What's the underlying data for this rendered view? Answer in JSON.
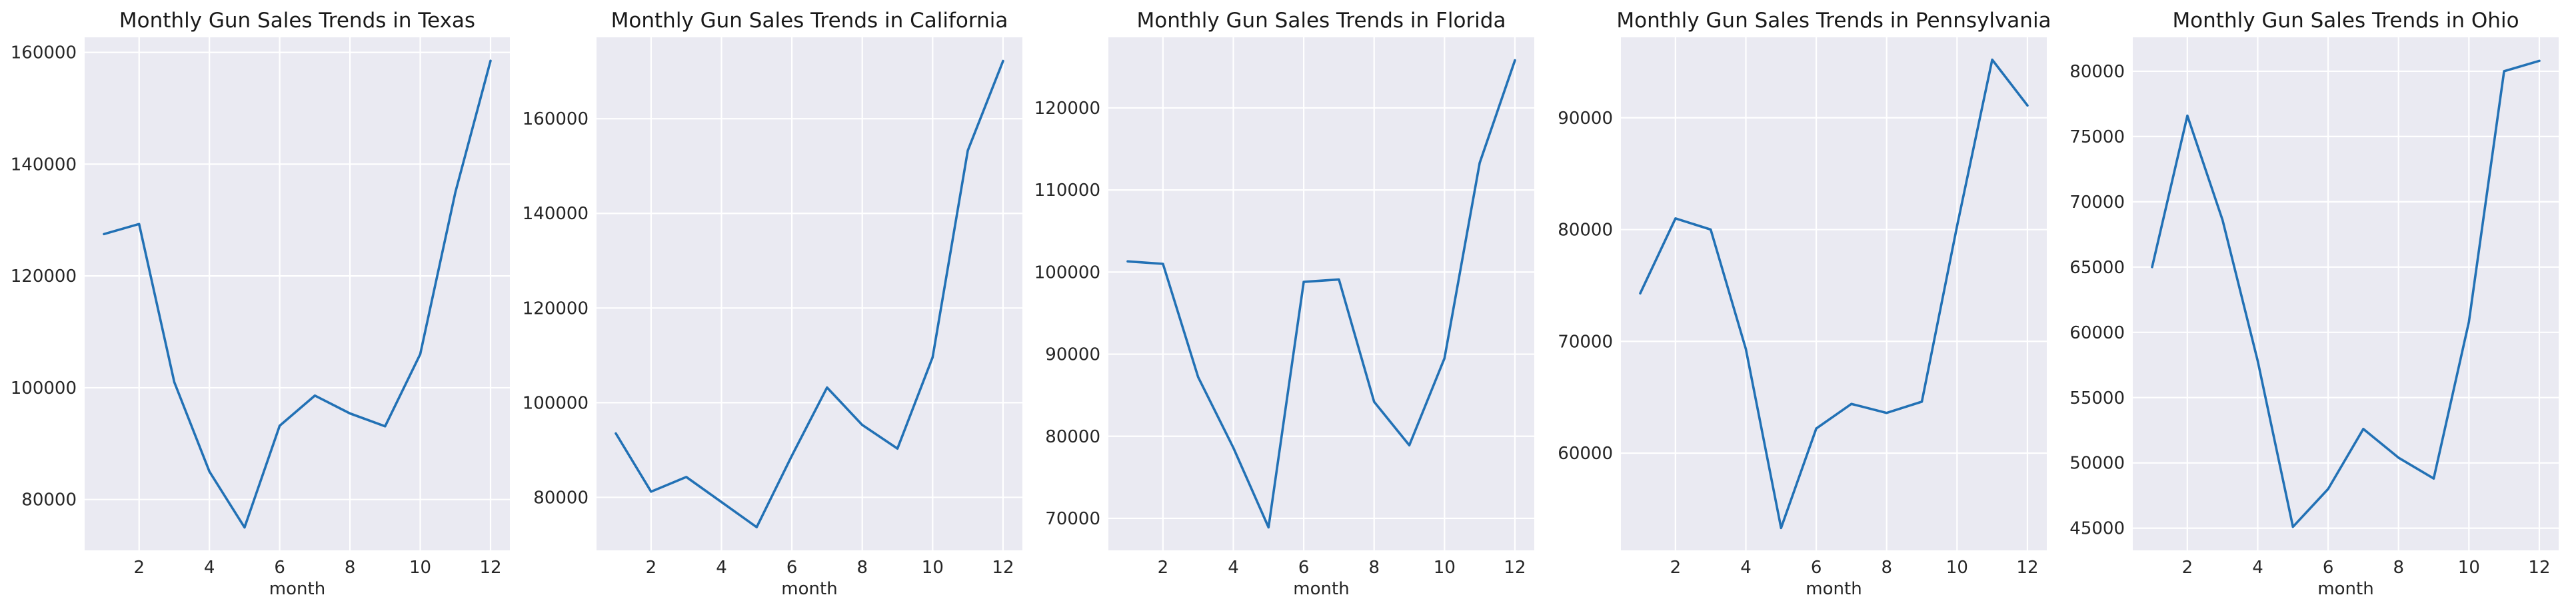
{
  "chart_data": [
    {
      "type": "line",
      "title": "Monthly Gun Sales Trends in Texas",
      "xlabel": "month",
      "ylabel": "",
      "x": [
        1,
        2,
        3,
        4,
        5,
        6,
        7,
        8,
        9,
        10,
        11,
        12
      ],
      "series": [
        {
          "values": [
            127500,
            129300,
            101000,
            85000,
            75000,
            93200,
            98600,
            95400,
            93100,
            106000,
            135000,
            158500
          ]
        }
      ],
      "xlim": [
        0.45,
        12.55
      ],
      "ylim": [
        70900,
        162700
      ],
      "xticks": [
        2,
        4,
        6,
        8,
        10,
        12
      ],
      "yticks": [
        80000,
        100000,
        120000,
        140000,
        160000
      ],
      "grid": true,
      "color": "#2271b5"
    },
    {
      "type": "line",
      "title": "Monthly Gun Sales Trends in California",
      "xlabel": "month",
      "ylabel": "",
      "x": [
        1,
        2,
        3,
        4,
        5,
        6,
        7,
        8,
        9,
        10,
        11,
        12
      ],
      "series": [
        {
          "values": [
            93500,
            81200,
            84300,
            79000,
            73700,
            88800,
            103200,
            95300,
            90300,
            109600,
            153300,
            172200
          ]
        }
      ],
      "xlim": [
        0.45,
        12.55
      ],
      "ylim": [
        68800,
        177200
      ],
      "xticks": [
        2,
        4,
        6,
        8,
        10,
        12
      ],
      "yticks": [
        80000,
        100000,
        120000,
        140000,
        160000
      ],
      "grid": true,
      "color": "#2271b5"
    },
    {
      "type": "line",
      "title": "Monthly Gun Sales Trends in Florida",
      "xlabel": "month",
      "ylabel": "",
      "x": [
        1,
        2,
        3,
        4,
        5,
        6,
        7,
        8,
        9,
        10,
        11,
        12
      ],
      "series": [
        {
          "values": [
            101300,
            101000,
            87200,
            78600,
            68900,
            98800,
            99100,
            84200,
            78900,
            89500,
            113300,
            125800
          ]
        }
      ],
      "xlim": [
        0.45,
        12.55
      ],
      "ylim": [
        66100,
        128600
      ],
      "xticks": [
        2,
        4,
        6,
        8,
        10,
        12
      ],
      "yticks": [
        70000,
        80000,
        90000,
        100000,
        110000,
        120000
      ],
      "grid": true,
      "color": "#2271b5"
    },
    {
      "type": "line",
      "title": "Monthly Gun Sales Trends in Pennsylvania",
      "xlabel": "month",
      "ylabel": "",
      "x": [
        1,
        2,
        3,
        4,
        5,
        6,
        7,
        8,
        9,
        10,
        11,
        12
      ],
      "series": [
        {
          "values": [
            74300,
            81000,
            80000,
            69300,
            53300,
            62200,
            64400,
            63600,
            64600,
            80300,
            95200,
            91100
          ]
        }
      ],
      "xlim": [
        0.45,
        12.55
      ],
      "ylim": [
        51300,
        97200
      ],
      "xticks": [
        2,
        4,
        6,
        8,
        10,
        12
      ],
      "yticks": [
        60000,
        70000,
        80000,
        90000
      ],
      "grid": true,
      "color": "#2271b5"
    },
    {
      "type": "line",
      "title": "Monthly Gun Sales Trends in Ohio",
      "xlabel": "month",
      "ylabel": "",
      "x": [
        1,
        2,
        3,
        4,
        5,
        6,
        7,
        8,
        9,
        10,
        11,
        12
      ],
      "series": [
        {
          "values": [
            65000,
            76600,
            68600,
            57800,
            45100,
            48000,
            52600,
            50400,
            48800,
            60800,
            80000,
            80800
          ]
        }
      ],
      "xlim": [
        0.45,
        12.55
      ],
      "ylim": [
        43300,
        82600
      ],
      "xticks": [
        2,
        4,
        6,
        8,
        10,
        12
      ],
      "yticks": [
        45000,
        50000,
        55000,
        60000,
        65000,
        70000,
        75000,
        80000
      ],
      "grid": true,
      "color": "#2271b5"
    }
  ]
}
